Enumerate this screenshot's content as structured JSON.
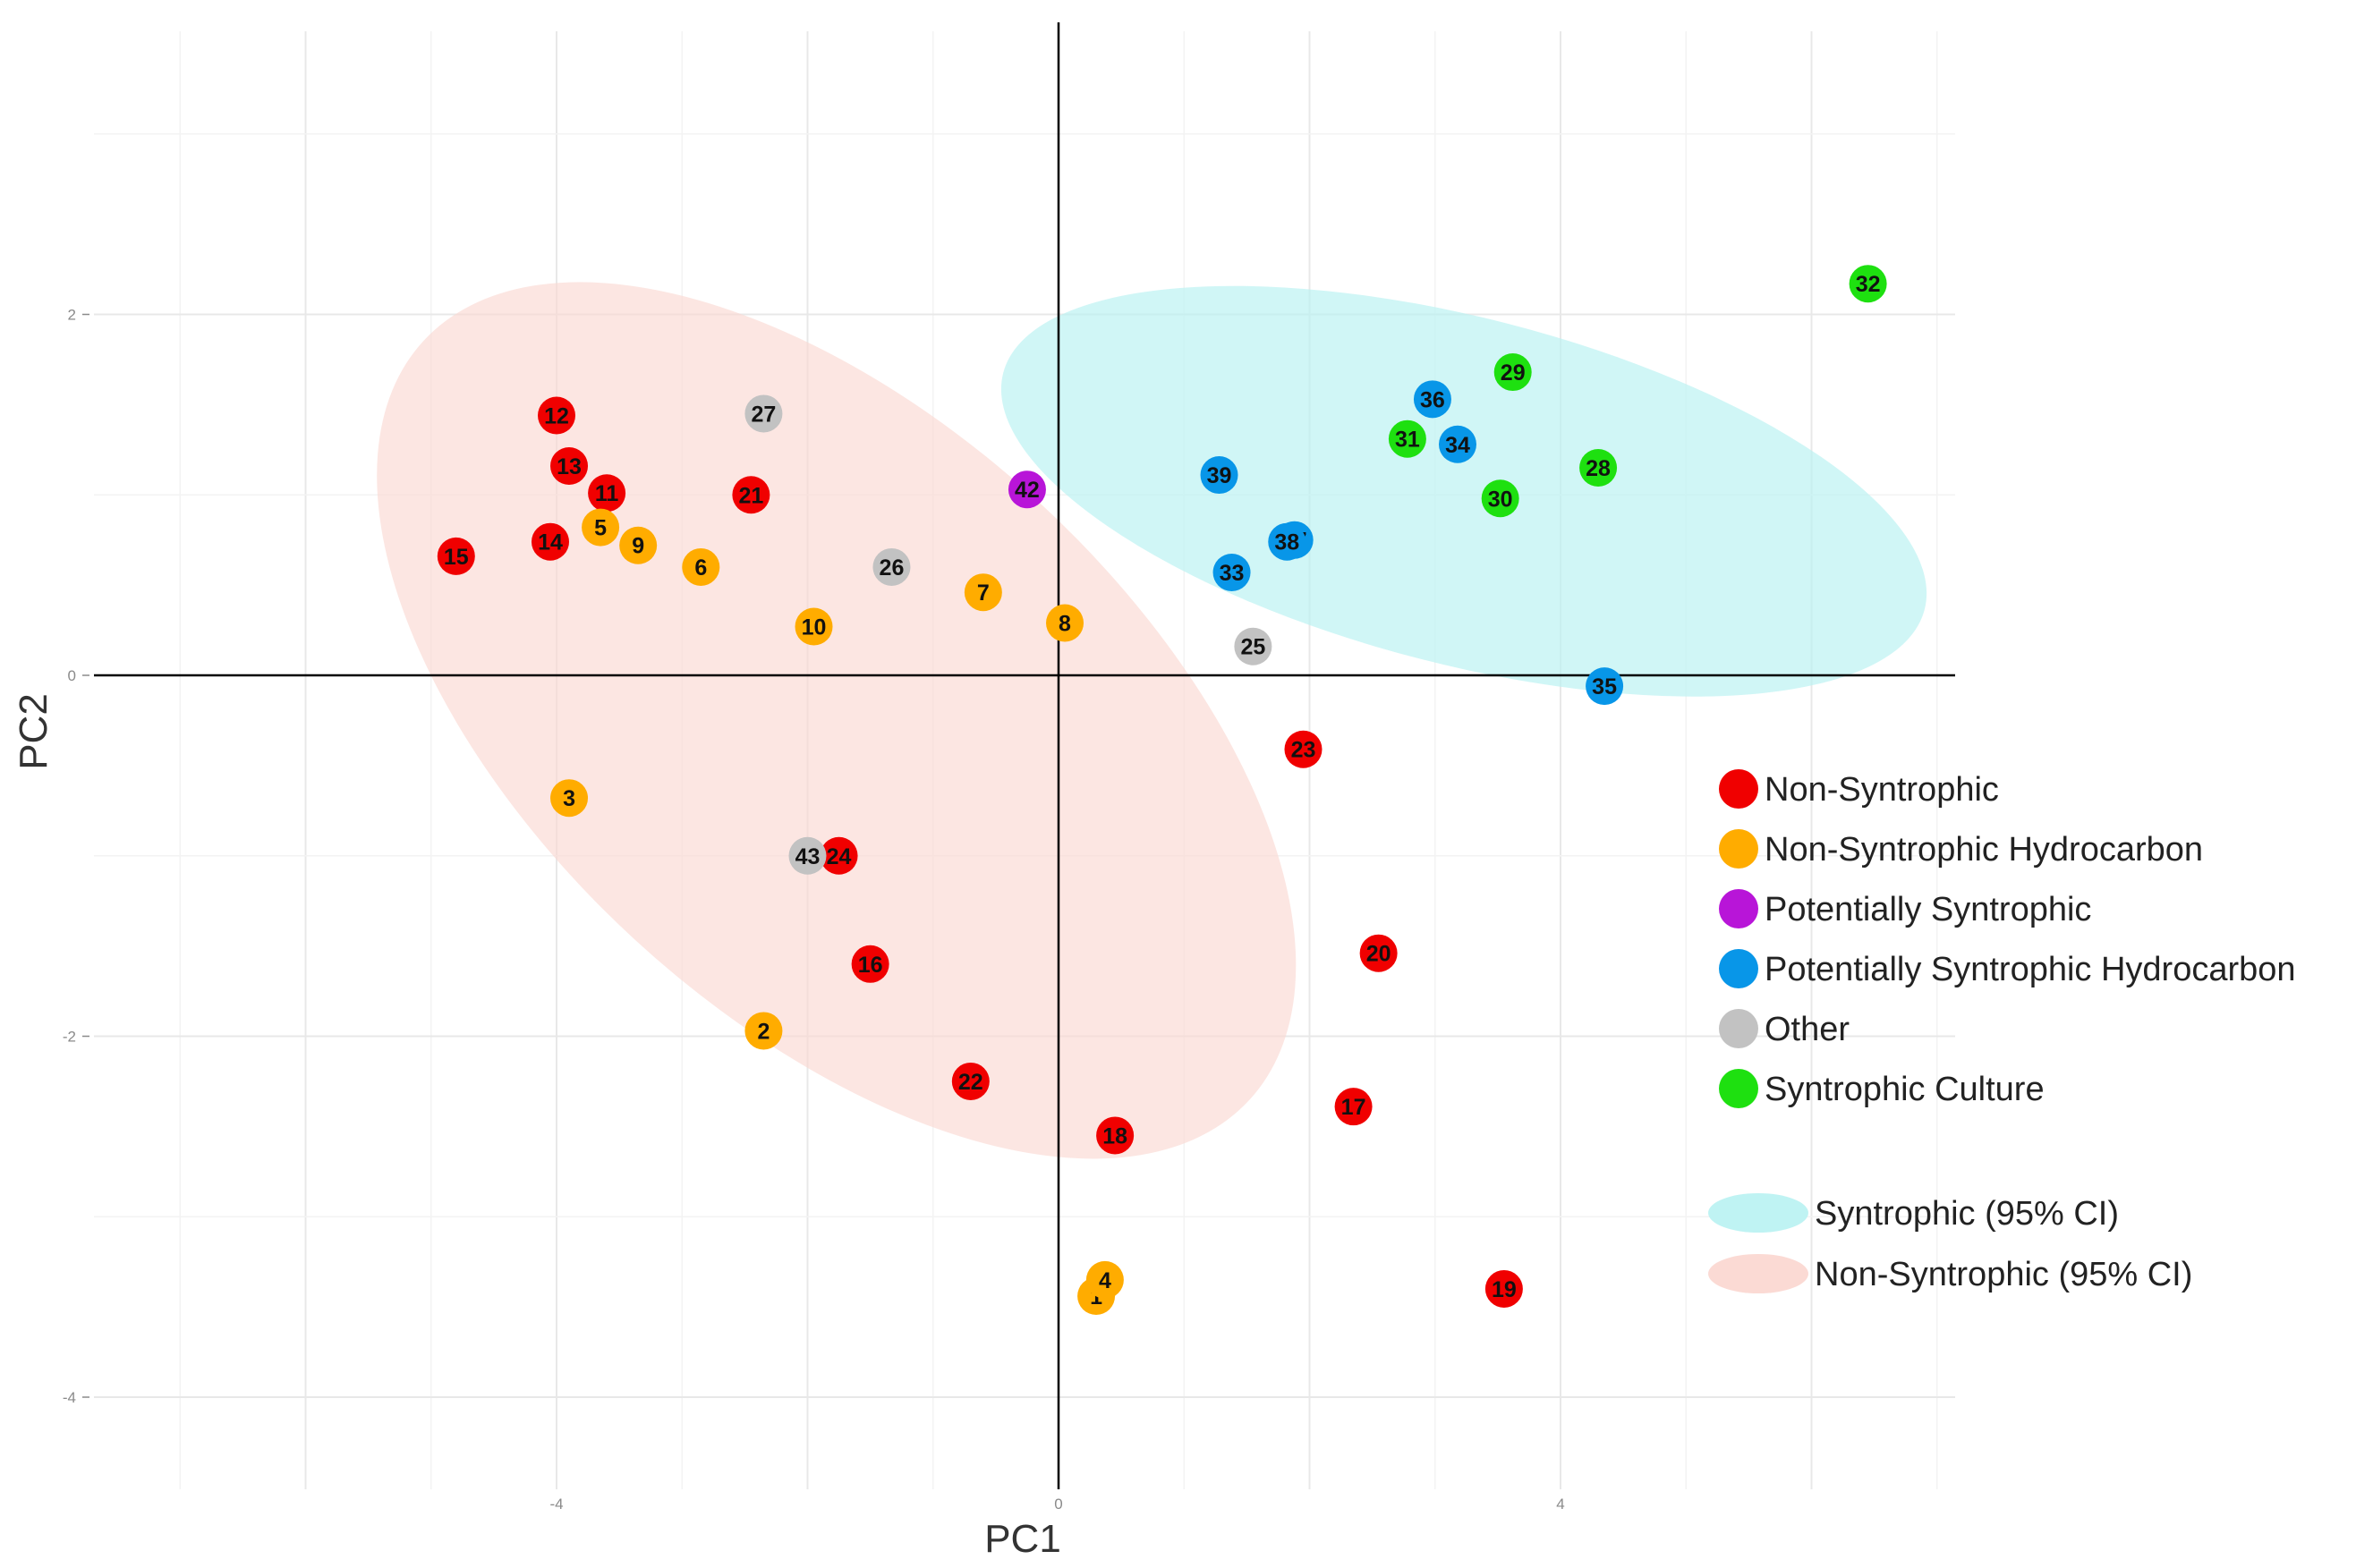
{
  "chart_data": {
    "type": "scatter",
    "title": "",
    "xlabel": "PC1",
    "ylabel": "PC2",
    "xlim": [
      -7.75,
      7.2
    ],
    "ylim": [
      -4.6,
      3.6
    ],
    "x_ticks": [
      {
        "value": -4,
        "label": "-4"
      },
      {
        "value": 0,
        "label": "0"
      },
      {
        "value": 4,
        "label": "4"
      }
    ],
    "y_ticks": [
      {
        "value": 2,
        "label": "2"
      },
      {
        "value": 0,
        "label": "0"
      },
      {
        "value": -2,
        "label": "-2"
      },
      {
        "value": -4,
        "label": "-4"
      }
    ],
    "grid": true,
    "legend_position": "right",
    "series": [
      {
        "name": "Non-Syntrophic",
        "color": "#f00000",
        "points": [
          {
            "label": "11",
            "x": -3.6,
            "y": 1.01
          },
          {
            "label": "12",
            "x": -4.0,
            "y": 1.44
          },
          {
            "label": "13",
            "x": -3.9,
            "y": 1.16
          },
          {
            "label": "14",
            "x": -4.05,
            "y": 0.74
          },
          {
            "label": "15",
            "x": -4.8,
            "y": 0.66
          },
          {
            "label": "16",
            "x": -1.5,
            "y": -1.6
          },
          {
            "label": "17",
            "x": 2.35,
            "y": -2.39
          },
          {
            "label": "18",
            "x": 0.45,
            "y": -2.55
          },
          {
            "label": "19",
            "x": 3.55,
            "y": -3.4
          },
          {
            "label": "20",
            "x": 2.55,
            "y": -1.54
          },
          {
            "label": "21",
            "x": -2.45,
            "y": 1.0
          },
          {
            "label": "22",
            "x": -0.7,
            "y": -2.25
          },
          {
            "label": "23",
            "x": 1.95,
            "y": -0.41
          },
          {
            "label": "24",
            "x": -1.75,
            "y": -1.0
          }
        ]
      },
      {
        "name": "Non-Syntrophic Hydrocarbon",
        "color": "#ffac00",
        "points": [
          {
            "label": "1",
            "x": 0.3,
            "y": -3.44
          },
          {
            "label": "2",
            "x": -2.35,
            "y": -1.97
          },
          {
            "label": "3",
            "x": -3.9,
            "y": -0.68
          },
          {
            "label": "4",
            "x": 0.37,
            "y": -3.35
          },
          {
            "label": "5",
            "x": -3.65,
            "y": 0.82
          },
          {
            "label": "6",
            "x": -2.85,
            "y": 0.6
          },
          {
            "label": "7",
            "x": -0.6,
            "y": 0.46
          },
          {
            "label": "8",
            "x": 0.05,
            "y": 0.29
          },
          {
            "label": "9",
            "x": -3.35,
            "y": 0.72
          },
          {
            "label": "10",
            "x": -1.95,
            "y": 0.27
          }
        ]
      },
      {
        "name": "Potentially Syntrophic",
        "color": "#b815d8",
        "points": [
          {
            "label": "42",
            "x": -0.25,
            "y": 1.03
          }
        ]
      },
      {
        "name": "Potentially Syntrophic Hydrocarbon",
        "color": "#0896e8",
        "points": [
          {
            "label": "33",
            "x": 1.38,
            "y": 0.57
          },
          {
            "label": "34",
            "x": 3.18,
            "y": 1.28
          },
          {
            "label": "35",
            "x": 4.35,
            "y": -0.06
          },
          {
            "label": "36",
            "x": 2.98,
            "y": 1.53
          },
          {
            "label": "37",
            "x": 1.88,
            "y": 0.75
          },
          {
            "label": "38",
            "x": 1.82,
            "y": 0.74
          },
          {
            "label": "39",
            "x": 1.28,
            "y": 1.11
          }
        ]
      },
      {
        "name": "Other",
        "color": "#c2c2c2",
        "points": [
          {
            "label": "25",
            "x": 1.55,
            "y": 0.16
          },
          {
            "label": "26",
            "x": -1.33,
            "y": 0.6
          },
          {
            "label": "27",
            "x": -2.35,
            "y": 1.45
          },
          {
            "label": "43",
            "x": -2.0,
            "y": -1.0
          }
        ]
      },
      {
        "name": "Syntrophic Culture",
        "color": "#1ee010",
        "points": [
          {
            "label": "28",
            "x": 4.3,
            "y": 1.15
          },
          {
            "label": "29",
            "x": 3.62,
            "y": 1.68
          },
          {
            "label": "30",
            "x": 3.52,
            "y": 0.98
          },
          {
            "label": "31",
            "x": 2.78,
            "y": 1.31
          },
          {
            "label": "32",
            "x": 6.45,
            "y": 2.17
          }
        ]
      }
    ],
    "ellipses": [
      {
        "name": "Non-Syntrophic (95% CI)",
        "color": "#fbd8d2",
        "opacity": 0.65,
        "cx": -1.77,
        "cy": -0.25,
        "rx": 4.47,
        "ry": 1.65,
        "angle_deg": 42.6
      },
      {
        "name": "Syntrophic (95% CI)",
        "color": "#bcf2f2",
        "opacity": 0.7,
        "cx": 3.23,
        "cy": 1.02,
        "rx": 3.79,
        "ry": 0.96,
        "angle_deg": 14.4
      }
    ]
  }
}
